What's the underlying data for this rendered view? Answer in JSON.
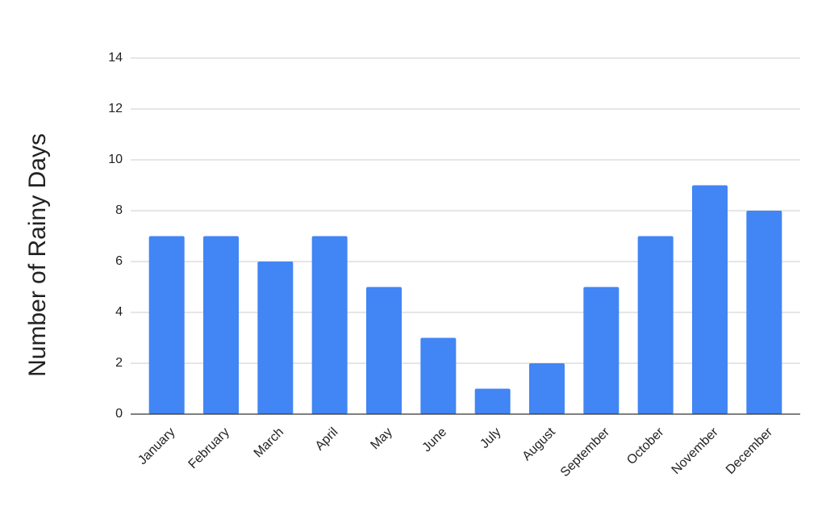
{
  "chart_data": {
    "type": "bar",
    "y_label": "Number of Rainy Days",
    "categories": [
      "January",
      "February",
      "March",
      "April",
      "May",
      "June",
      "July",
      "August",
      "September",
      "October",
      "November",
      "December"
    ],
    "values": [
      7,
      7,
      6,
      7,
      5,
      3,
      1,
      2,
      5,
      7,
      9,
      8
    ],
    "color": "#4285f4",
    "ylim": [
      0,
      14
    ],
    "yticks": [
      0,
      2,
      4,
      6,
      8,
      10,
      12,
      14
    ],
    "grid": true
  }
}
